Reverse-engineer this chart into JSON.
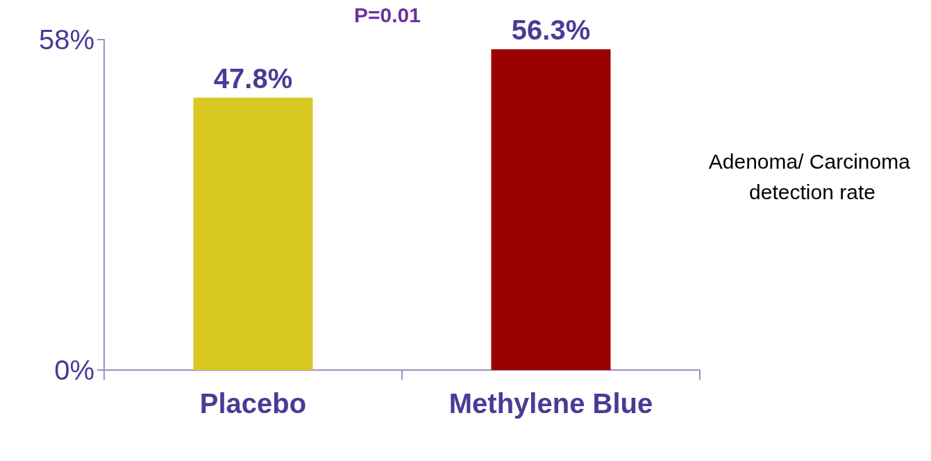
{
  "chart_data": {
    "type": "bar",
    "categories": [
      "Placebo",
      "Methylene Blue"
    ],
    "values": [
      47.8,
      56.3
    ],
    "colors": [
      "#d9c822",
      "#990000"
    ],
    "value_labels": [
      "47.8%",
      "56.3%"
    ],
    "ylim": [
      0,
      58
    ],
    "yticks": [
      {
        "value": 0,
        "label": "0%"
      },
      {
        "value": 58,
        "label": "58%"
      }
    ],
    "ylabel": "Adenoma/ Carcinoma detection rate",
    "annotations": [
      "P=0.01"
    ],
    "grid": false
  }
}
